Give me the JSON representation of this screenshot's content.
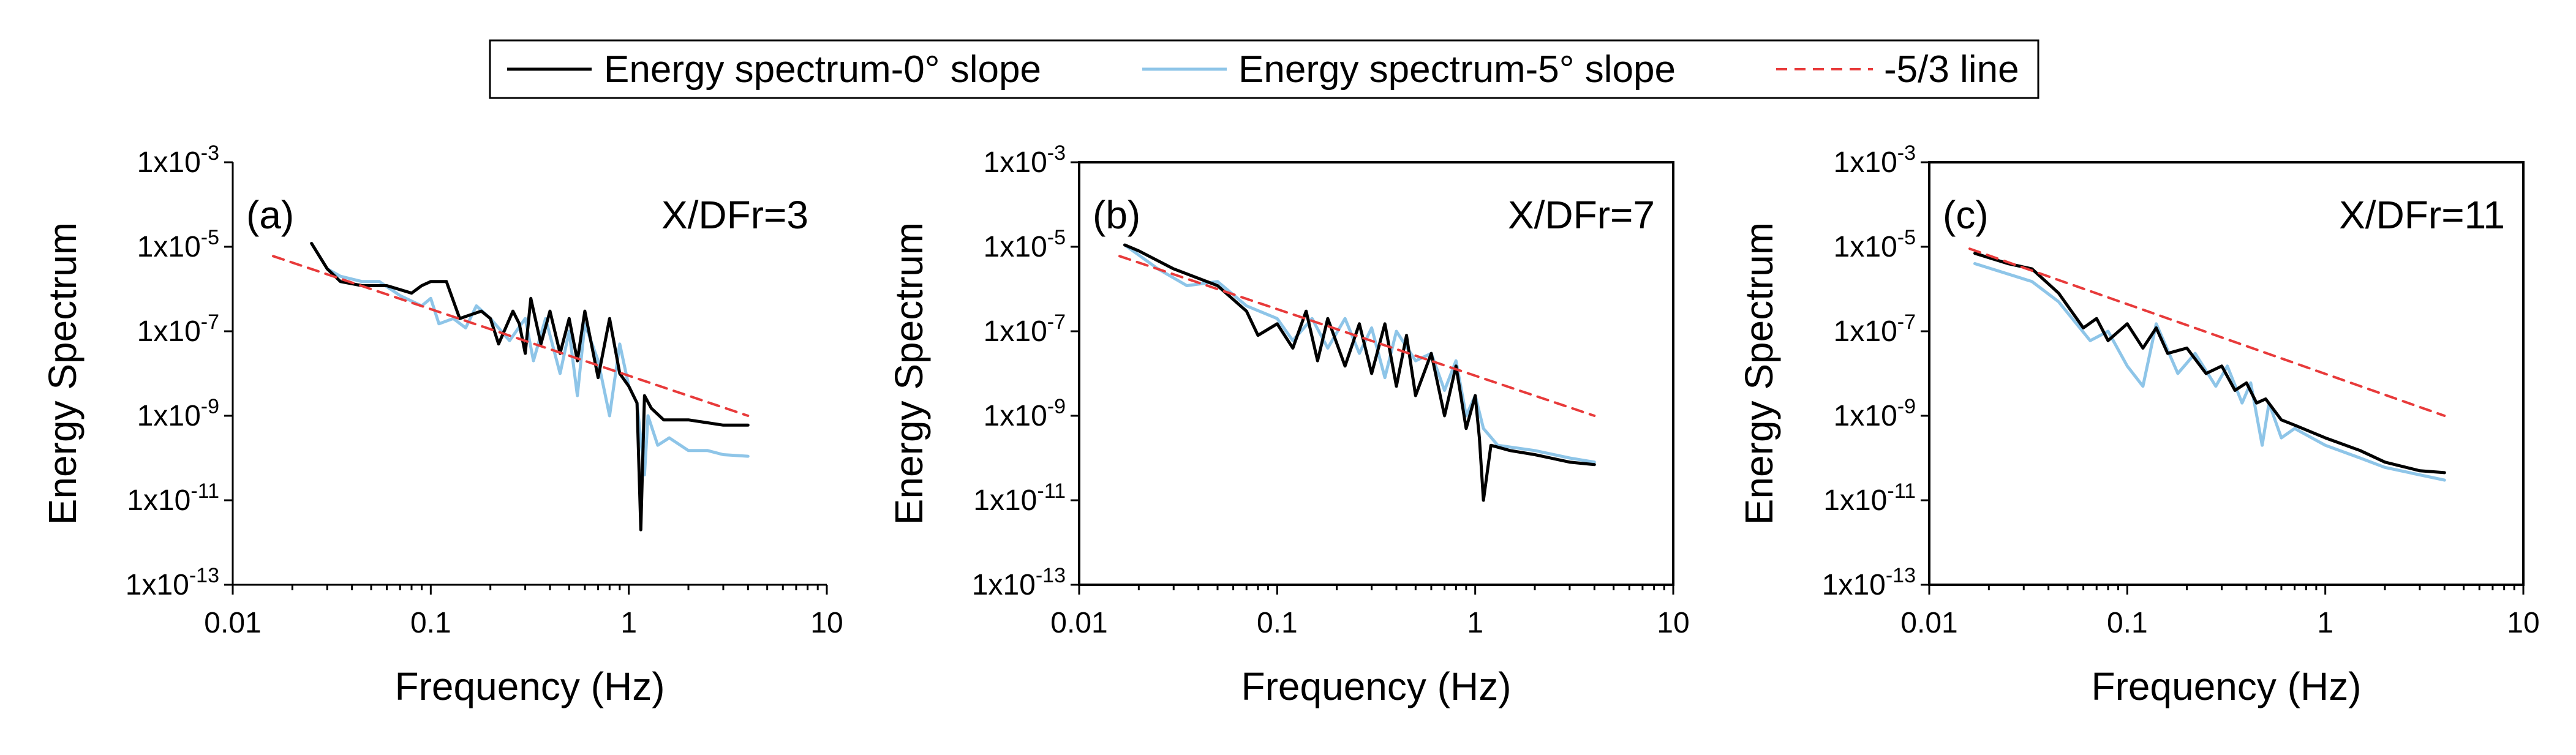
{
  "figure": {
    "legend": [
      {
        "label": "Energy spectrum-0° slope",
        "color": "#000000",
        "dash": "solid"
      },
      {
        "label": "Energy spectrum-5° slope",
        "color": "#8EC5E8",
        "dash": "solid"
      },
      {
        "label": "-5/3 line",
        "color": "#E83A3A",
        "dash": "dashed"
      }
    ],
    "colors": {
      "series0": "#000000",
      "series5": "#8EC5E8",
      "ref": "#E83A3A",
      "axis": "#000000"
    }
  },
  "chart_data": [
    {
      "type": "line",
      "panel_label": "(a)",
      "annotation": "X/DFr=3",
      "xlabel": "Frequency (Hz)",
      "ylabel": "Energy Spectrum",
      "x_scale": "log",
      "y_scale": "log",
      "xlim": [
        0.01,
        10
      ],
      "ylim": [
        1e-13,
        0.001
      ],
      "x_ticks": [
        {
          "value": 0.01,
          "label": "0.01"
        },
        {
          "value": 0.1,
          "label": "0.1"
        },
        {
          "value": 1,
          "label": "1"
        },
        {
          "value": 10,
          "label": "10"
        }
      ],
      "y_ticks": [
        {
          "value": 0.001,
          "base": "1x10",
          "exp": "-3"
        },
        {
          "value": 1e-05,
          "base": "1x10",
          "exp": "-5"
        },
        {
          "value": 1e-07,
          "base": "1x10",
          "exp": "-7"
        },
        {
          "value": 1e-09,
          "base": "1x10",
          "exp": "-9"
        },
        {
          "value": 1e-11,
          "base": "1x10",
          "exp": "-11"
        },
        {
          "value": 1e-13,
          "base": "1x10",
          "exp": "-13"
        }
      ],
      "series": [
        {
          "name": "Energy spectrum-0° slope",
          "points": [
            [
              0.025,
              1.2e-05
            ],
            [
              0.03,
              3e-06
            ],
            [
              0.035,
              1.5e-06
            ],
            [
              0.045,
              1.2e-06
            ],
            [
              0.06,
              1.2e-06
            ],
            [
              0.08,
              8e-07
            ],
            [
              0.09,
              1.2e-06
            ],
            [
              0.1,
              1.5e-06
            ],
            [
              0.12,
              1.5e-06
            ],
            [
              0.14,
              2e-07
            ],
            [
              0.18,
              3e-07
            ],
            [
              0.2,
              2e-07
            ],
            [
              0.22,
              5e-08
            ],
            [
              0.26,
              3e-07
            ],
            [
              0.28,
              1.5e-07
            ],
            [
              0.3,
              3e-08
            ],
            [
              0.32,
              6e-07
            ],
            [
              0.36,
              5e-08
            ],
            [
              0.4,
              3e-07
            ],
            [
              0.45,
              3e-08
            ],
            [
              0.5,
              2e-07
            ],
            [
              0.55,
              2e-08
            ],
            [
              0.6,
              3e-07
            ],
            [
              0.7,
              8e-09
            ],
            [
              0.8,
              2e-07
            ],
            [
              0.9,
              1e-08
            ],
            [
              1.0,
              5e-09
            ],
            [
              1.1,
              2e-09
            ],
            [
              1.15,
              2e-12
            ],
            [
              1.2,
              3e-09
            ],
            [
              1.3,
              1.5e-09
            ],
            [
              1.5,
              8e-10
            ],
            [
              2.0,
              8e-10
            ],
            [
              3.0,
              6e-10
            ],
            [
              4.0,
              6e-10
            ]
          ]
        },
        {
          "name": "Energy spectrum-5° slope",
          "points": [
            [
              0.025,
              1.2e-05
            ],
            [
              0.03,
              3e-06
            ],
            [
              0.035,
              2e-06
            ],
            [
              0.045,
              1.5e-06
            ],
            [
              0.055,
              1.5e-06
            ],
            [
              0.07,
              7e-07
            ],
            [
              0.09,
              4e-07
            ],
            [
              0.1,
              6e-07
            ],
            [
              0.11,
              1.5e-07
            ],
            [
              0.13,
              2e-07
            ],
            [
              0.15,
              1.2e-07
            ],
            [
              0.17,
              4e-07
            ],
            [
              0.2,
              2e-07
            ],
            [
              0.25,
              6e-08
            ],
            [
              0.3,
              2e-07
            ],
            [
              0.33,
              2e-08
            ],
            [
              0.38,
              2e-07
            ],
            [
              0.45,
              1e-08
            ],
            [
              0.5,
              1e-07
            ],
            [
              0.55,
              3e-09
            ],
            [
              0.6,
              1.5e-07
            ],
            [
              0.7,
              2e-08
            ],
            [
              0.8,
              1e-09
            ],
            [
              0.9,
              5e-08
            ],
            [
              1.0,
              5e-09
            ],
            [
              1.1,
              2e-09
            ],
            [
              1.2,
              4e-11
            ],
            [
              1.25,
              1e-09
            ],
            [
              1.4,
              2e-10
            ],
            [
              1.6,
              3e-10
            ],
            [
              2.0,
              1.5e-10
            ],
            [
              2.5,
              1.5e-10
            ],
            [
              3.0,
              1.2e-10
            ],
            [
              4.0,
              1.1e-10
            ]
          ]
        },
        {
          "name": "-5/3 line",
          "points": [
            [
              0.016,
              6e-06
            ],
            [
              4.0,
              1e-09
            ]
          ]
        }
      ]
    },
    {
      "type": "line",
      "panel_label": "(b)",
      "annotation": "X/DFr=7",
      "xlabel": "Frequency (Hz)",
      "ylabel": "Energy Spectrum",
      "x_scale": "log",
      "y_scale": "log",
      "xlim": [
        0.01,
        10
      ],
      "ylim": [
        1e-13,
        0.001
      ],
      "x_ticks": [
        {
          "value": 0.01,
          "label": "0.01"
        },
        {
          "value": 0.1,
          "label": "0.1"
        },
        {
          "value": 1,
          "label": "1"
        },
        {
          "value": 10,
          "label": "10"
        }
      ],
      "y_ticks": [
        {
          "value": 0.001,
          "base": "1x10",
          "exp": "-3"
        },
        {
          "value": 1e-05,
          "base": "1x10",
          "exp": "-5"
        },
        {
          "value": 1e-07,
          "base": "1x10",
          "exp": "-7"
        },
        {
          "value": 1e-09,
          "base": "1x10",
          "exp": "-9"
        },
        {
          "value": 1e-11,
          "base": "1x10",
          "exp": "-11"
        },
        {
          "value": 1e-13,
          "base": "1x10",
          "exp": "-13"
        }
      ],
      "series": [
        {
          "name": "Energy spectrum-0° slope",
          "points": [
            [
              0.017,
              1.1e-05
            ],
            [
              0.02,
              8e-06
            ],
            [
              0.03,
              3e-06
            ],
            [
              0.05,
              1.2e-06
            ],
            [
              0.07,
              3e-07
            ],
            [
              0.08,
              8e-08
            ],
            [
              0.1,
              1.5e-07
            ],
            [
              0.12,
              4e-08
            ],
            [
              0.14,
              3e-07
            ],
            [
              0.16,
              2e-08
            ],
            [
              0.18,
              2e-07
            ],
            [
              0.22,
              1.5e-08
            ],
            [
              0.26,
              1.5e-07
            ],
            [
              0.3,
              1e-08
            ],
            [
              0.35,
              1.5e-07
            ],
            [
              0.4,
              5e-09
            ],
            [
              0.45,
              8e-08
            ],
            [
              0.5,
              3e-09
            ],
            [
              0.6,
              3e-08
            ],
            [
              0.7,
              1e-09
            ],
            [
              0.8,
              1.5e-08
            ],
            [
              0.9,
              5e-10
            ],
            [
              1.0,
              3e-09
            ],
            [
              1.05,
              3e-10
            ],
            [
              1.1,
              1e-11
            ],
            [
              1.2,
              2e-10
            ],
            [
              1.5,
              1.5e-10
            ],
            [
              2.0,
              1.2e-10
            ],
            [
              3.0,
              8e-11
            ],
            [
              4.0,
              7e-11
            ]
          ]
        },
        {
          "name": "Energy spectrum-5° slope",
          "points": [
            [
              0.017,
              1.1e-05
            ],
            [
              0.025,
              3e-06
            ],
            [
              0.035,
              1.2e-06
            ],
            [
              0.05,
              1.5e-06
            ],
            [
              0.07,
              4e-07
            ],
            [
              0.1,
              2e-07
            ],
            [
              0.12,
              6e-08
            ],
            [
              0.15,
              2e-07
            ],
            [
              0.18,
              4e-08
            ],
            [
              0.22,
              2e-07
            ],
            [
              0.26,
              3e-08
            ],
            [
              0.3,
              1.2e-07
            ],
            [
              0.35,
              8e-09
            ],
            [
              0.4,
              1e-07
            ],
            [
              0.5,
              2e-08
            ],
            [
              0.6,
              3e-08
            ],
            [
              0.7,
              4e-09
            ],
            [
              0.8,
              2e-08
            ],
            [
              0.9,
              1e-09
            ],
            [
              1.0,
              3e-09
            ],
            [
              1.1,
              5e-10
            ],
            [
              1.3,
              2e-10
            ],
            [
              2.0,
              1.5e-10
            ],
            [
              3.0,
              1e-10
            ],
            [
              4.0,
              8e-11
            ]
          ]
        },
        {
          "name": "-5/3 line",
          "points": [
            [
              0.016,
              6e-06
            ],
            [
              4.0,
              1e-09
            ]
          ]
        }
      ]
    },
    {
      "type": "line",
      "panel_label": "(c)",
      "annotation": "X/DFr=11",
      "xlabel": "Frequency (Hz)",
      "ylabel": "Energy Spectrum",
      "x_scale": "log",
      "y_scale": "log",
      "xlim": [
        0.01,
        10
      ],
      "ylim": [
        1e-13,
        0.001
      ],
      "x_ticks": [
        {
          "value": 0.01,
          "label": "0.01"
        },
        {
          "value": 0.1,
          "label": "0.1"
        },
        {
          "value": 1,
          "label": "1"
        },
        {
          "value": 10,
          "label": "10"
        }
      ],
      "y_ticks": [
        {
          "value": 0.001,
          "base": "1x10",
          "exp": "-3"
        },
        {
          "value": 1e-05,
          "base": "1x10",
          "exp": "-5"
        },
        {
          "value": 1e-07,
          "base": "1x10",
          "exp": "-7"
        },
        {
          "value": 1e-09,
          "base": "1x10",
          "exp": "-9"
        },
        {
          "value": 1e-11,
          "base": "1x10",
          "exp": "-11"
        },
        {
          "value": 1e-13,
          "base": "1x10",
          "exp": "-13"
        }
      ],
      "series": [
        {
          "name": "Energy spectrum-0° slope",
          "points": [
            [
              0.017,
              7e-06
            ],
            [
              0.025,
              4e-06
            ],
            [
              0.033,
              3e-06
            ],
            [
              0.045,
              8e-07
            ],
            [
              0.06,
              1.2e-07
            ],
            [
              0.07,
              2e-07
            ],
            [
              0.08,
              6e-08
            ],
            [
              0.1,
              1.5e-07
            ],
            [
              0.12,
              4e-08
            ],
            [
              0.14,
              1.2e-07
            ],
            [
              0.16,
              3e-08
            ],
            [
              0.2,
              4e-08
            ],
            [
              0.25,
              1e-08
            ],
            [
              0.3,
              1.5e-08
            ],
            [
              0.35,
              4e-09
            ],
            [
              0.4,
              6e-09
            ],
            [
              0.45,
              2e-09
            ],
            [
              0.5,
              2.5e-09
            ],
            [
              0.6,
              8e-10
            ],
            [
              0.7,
              6e-10
            ],
            [
              1.0,
              3e-10
            ],
            [
              1.5,
              1.5e-10
            ],
            [
              2.0,
              8e-11
            ],
            [
              3.0,
              5e-11
            ],
            [
              4.0,
              4.5e-11
            ]
          ]
        },
        {
          "name": "Energy spectrum-5° slope",
          "points": [
            [
              0.017,
              4e-06
            ],
            [
              0.033,
              1.5e-06
            ],
            [
              0.045,
              5e-07
            ],
            [
              0.065,
              6e-08
            ],
            [
              0.08,
              1e-07
            ],
            [
              0.1,
              1.5e-08
            ],
            [
              0.12,
              5e-09
            ],
            [
              0.14,
              1.5e-07
            ],
            [
              0.18,
              1e-08
            ],
            [
              0.22,
              3e-08
            ],
            [
              0.28,
              5e-09
            ],
            [
              0.32,
              1.5e-08
            ],
            [
              0.38,
              2e-09
            ],
            [
              0.42,
              6e-09
            ],
            [
              0.48,
              2e-10
            ],
            [
              0.52,
              2e-09
            ],
            [
              0.6,
              3e-10
            ],
            [
              0.7,
              5e-10
            ],
            [
              1.0,
              2e-10
            ],
            [
              1.5,
              1e-10
            ],
            [
              2.0,
              6e-11
            ],
            [
              3.0,
              4e-11
            ],
            [
              4.0,
              3e-11
            ]
          ]
        },
        {
          "name": "-5/3 line",
          "points": [
            [
              0.016,
              9e-06
            ],
            [
              4.0,
              1e-09
            ]
          ]
        }
      ]
    }
  ]
}
